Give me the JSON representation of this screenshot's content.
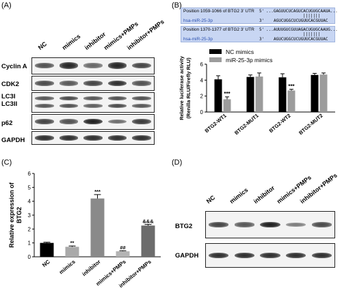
{
  "panels": {
    "A": "(A)",
    "B": "(B)",
    "C": "(C)",
    "D": "(D)"
  },
  "panelA": {
    "lanes": [
      "NC",
      "mimics",
      "inhibitor",
      "mimics+PMPs",
      "inhibitor+PMPs"
    ],
    "rows": [
      "Cyclin A",
      "CDK2",
      "LC3I\nLC3II",
      "p62",
      "GAPDH"
    ],
    "row_labels": {
      "cyclin": "Cyclin A",
      "cdk2": "CDK2",
      "lc3a": "LC3I",
      "lc3b": "LC3II",
      "p62": "p62",
      "gapdh": "GAPDH"
    },
    "band_levels": {
      "cyclin": [
        0.6,
        0.9,
        0.45,
        0.9,
        0.7
      ],
      "cdk2": [
        0.65,
        0.55,
        0.7,
        0.85,
        0.6
      ],
      "lc3i": [
        0.55,
        0.65,
        0.55,
        0.6,
        0.6
      ],
      "lc3ii": [
        0.55,
        0.6,
        0.5,
        0.65,
        0.55
      ],
      "p62": [
        0.7,
        0.6,
        0.95,
        0.4,
        0.75
      ],
      "gapdh": [
        0.85,
        0.85,
        0.85,
        0.85,
        0.85
      ]
    }
  },
  "panelB": {
    "seq1": {
      "position": "Position 1059-1066 of BTG2 3' UTR",
      "utr_label": "5'",
      "utr_seq": "...GAGUUCUCAGUCACUGUGCAAUA...",
      "mirna": "hsa-miR-25-3p",
      "mirna_label": "3'",
      "mirna_seq": "AGUCUGGCUCUGUUCACGUUAC"
    },
    "seq2": {
      "position": "Position 1370-1377 of BTG2 3' UTR",
      "utr_label": "5'",
      "utr_seq": "...AUUUGUCGUUAGACUGUGCAAUG...",
      "mirna": "hsa-miR-25-3p",
      "mirna_label": "3'",
      "mirna_seq": "AGUCUGGCUCUGUUCACGUUAC"
    }
  },
  "panelC": {
    "ylabel": "Relative expression of BTG2"
  },
  "panelD": {
    "lanes": [
      "NC",
      "mimics",
      "inhibitor",
      "mimics+PMPs",
      "inhibitor+PMPs"
    ],
    "rows": [
      "BTG2",
      "GAPDH"
    ],
    "band_levels": {
      "btg2": [
        0.7,
        0.55,
        0.95,
        0.3,
        0.65
      ],
      "gapdh": [
        0.85,
        0.85,
        0.85,
        0.85,
        0.85
      ]
    }
  },
  "chart_data": [
    {
      "type": "bar",
      "panel": "B",
      "title": "",
      "xlabel": "",
      "ylabel": "Relative luciferase activity (Renilla RLU/Firefly RLU)",
      "ylim": [
        0,
        6
      ],
      "yticks": [
        0,
        2,
        4,
        6
      ],
      "categories": [
        "BTG2-WT1",
        "BTG2-MUT1",
        "BTG2-WT2",
        "BTG2-MUT2"
      ],
      "series": [
        {
          "name": "NC mimics",
          "color": "#000000",
          "values": [
            4.1,
            4.4,
            4.35,
            4.65
          ],
          "errors": [
            0.45,
            0.25,
            0.45,
            0.2
          ]
        },
        {
          "name": "miR-25-3p mimics",
          "color": "#9c9c9c",
          "values": [
            1.6,
            4.45,
            2.7,
            4.7
          ],
          "errors": [
            0.3,
            0.45,
            0.15,
            0.2
          ]
        }
      ],
      "annotations": [
        {
          "category": "BTG2-WT1",
          "series": "miR-25-3p mimics",
          "text": "***"
        },
        {
          "category": "BTG2-WT2",
          "series": "miR-25-3p mimics",
          "text": "***"
        }
      ],
      "legend_position": "top-left"
    },
    {
      "type": "bar",
      "panel": "C",
      "title": "",
      "xlabel": "",
      "ylabel": "Relative expression of BTG2",
      "ylim": [
        0,
        6
      ],
      "yticks": [
        0,
        1,
        2,
        3,
        4,
        5,
        6
      ],
      "categories": [
        "NC",
        "mimics",
        "inhibitor",
        "mimics+PMPs",
        "inhibitor+PMPs"
      ],
      "colors": [
        "#000000",
        "#a9a9a9",
        "#8a8a8a",
        "#b4b4b4",
        "#6c6c6c"
      ],
      "values": [
        1.0,
        0.72,
        4.2,
        0.4,
        2.25
      ],
      "errors": [
        0.05,
        0.06,
        0.28,
        0.04,
        0.08
      ],
      "annotations": [
        "",
        "**",
        "***",
        "##",
        "&&&"
      ]
    }
  ]
}
